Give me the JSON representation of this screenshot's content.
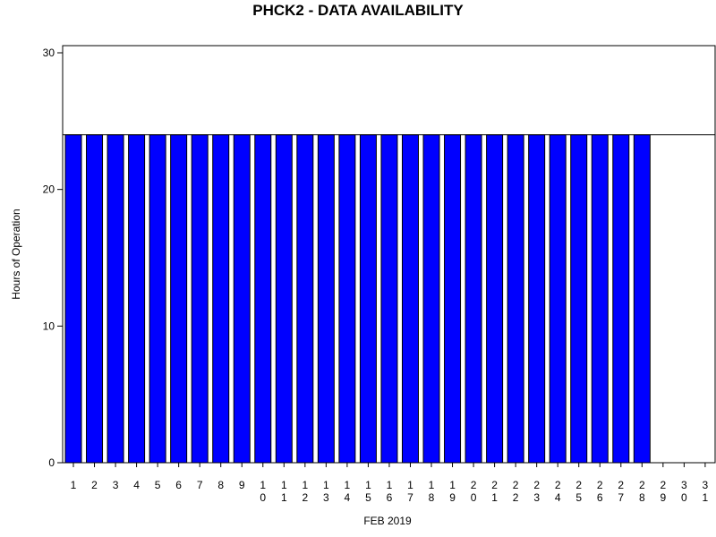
{
  "chart_data": {
    "type": "bar",
    "title": "PHCK2 - DATA AVAILABILITY",
    "xlabel": "FEB 2019",
    "ylabel": "Hours of Operation",
    "ylim": [
      0,
      30
    ],
    "y_ticks": [
      0,
      10,
      20,
      30
    ],
    "reference_line": 24,
    "grid": false,
    "bar_color": "#0000ff",
    "categories": [
      "1",
      "2",
      "3",
      "4",
      "5",
      "6",
      "7",
      "8",
      "9",
      "10",
      "11",
      "12",
      "13",
      "14",
      "15",
      "16",
      "17",
      "18",
      "19",
      "20",
      "21",
      "22",
      "23",
      "24",
      "25",
      "26",
      "27",
      "28",
      "29",
      "30",
      "31"
    ],
    "tick_label_lines": [
      [
        "1"
      ],
      [
        "2"
      ],
      [
        "3"
      ],
      [
        "4"
      ],
      [
        "5"
      ],
      [
        "6"
      ],
      [
        "7"
      ],
      [
        "8"
      ],
      [
        "9"
      ],
      [
        "1",
        "0"
      ],
      [
        "1",
        "1"
      ],
      [
        "1",
        "2"
      ],
      [
        "1",
        "3"
      ],
      [
        "1",
        "4"
      ],
      [
        "1",
        "5"
      ],
      [
        "1",
        "6"
      ],
      [
        "1",
        "7"
      ],
      [
        "1",
        "8"
      ],
      [
        "1",
        "9"
      ],
      [
        "2",
        "0"
      ],
      [
        "2",
        "1"
      ],
      [
        "2",
        "2"
      ],
      [
        "2",
        "3"
      ],
      [
        "2",
        "4"
      ],
      [
        "2",
        "5"
      ],
      [
        "2",
        "6"
      ],
      [
        "2",
        "7"
      ],
      [
        "2",
        "8"
      ],
      [
        "2",
        "9"
      ],
      [
        "3",
        "0"
      ],
      [
        "3",
        "1"
      ]
    ],
    "values": [
      24,
      24,
      24,
      24,
      24,
      24,
      24,
      24,
      24,
      24,
      24,
      24,
      24,
      24,
      24,
      24,
      24,
      24,
      24,
      24,
      24,
      24,
      24,
      24,
      24,
      24,
      24,
      24,
      0,
      0,
      0
    ]
  }
}
